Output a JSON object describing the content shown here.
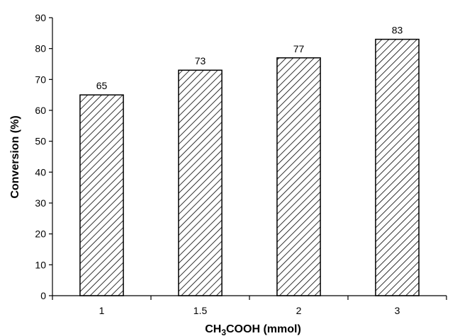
{
  "chart_data": {
    "type": "bar",
    "categories": [
      "1",
      "1.5",
      "2",
      "3"
    ],
    "values": [
      65,
      73,
      77,
      83
    ],
    "data_labels": [
      "65",
      "73",
      "77",
      "83"
    ],
    "title": "",
    "xlabel_main": "CH",
    "xlabel_sub": "3",
    "xlabel_tail": "COOH (mmol)",
    "ylabel": "Conversion (%)",
    "ylim": [
      0,
      90
    ],
    "yticks": [
      0,
      10,
      20,
      30,
      40,
      50,
      60,
      70,
      80,
      90
    ],
    "grid": false,
    "legend": "none",
    "bar_fill": "hatched",
    "colors": {
      "stroke": "#000000",
      "background": "#ffffff"
    }
  }
}
